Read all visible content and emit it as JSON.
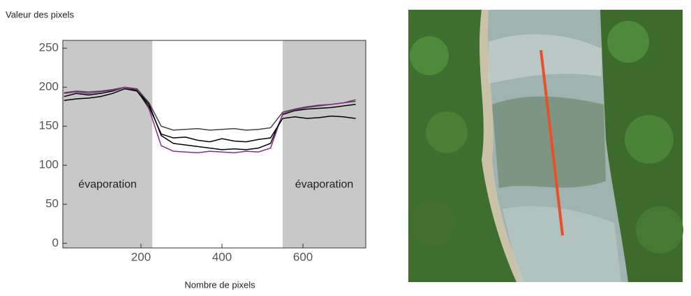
{
  "chart_data": {
    "type": "line",
    "ylabel": "Valeur des pixels",
    "xlabel": "Nombre de pixels",
    "x": [
      10,
      40,
      70,
      100,
      130,
      160,
      190,
      220,
      250,
      280,
      310,
      340,
      370,
      400,
      430,
      460,
      490,
      520,
      550,
      580,
      610,
      640,
      670,
      700,
      730
    ],
    "series": [
      {
        "color": "#000000",
        "values": [
          188,
          192,
          190,
          192,
          195,
          200,
          196,
          178,
          138,
          128,
          126,
          124,
          122,
          120,
          121,
          120,
          122,
          128,
          165,
          170,
          172,
          173,
          174,
          176,
          178
        ]
      },
      {
        "color": "#444444",
        "values": [
          193,
          195,
          194,
          195,
          197,
          200,
          198,
          180,
          150,
          145,
          146,
          147,
          145,
          146,
          147,
          145,
          146,
          148,
          168,
          172,
          175,
          177,
          178,
          180,
          182
        ]
      },
      {
        "color": "#8b2e8b",
        "values": [
          192,
          194,
          192,
          194,
          196,
          200,
          197,
          172,
          125,
          118,
          117,
          116,
          118,
          117,
          116,
          118,
          117,
          122,
          166,
          171,
          174,
          176,
          178,
          180,
          184
        ]
      },
      {
        "color": "#000000",
        "values": [
          183,
          185,
          186,
          188,
          192,
          198,
          195,
          175,
          140,
          135,
          136,
          132,
          130,
          134,
          131,
          130,
          133,
          135,
          160,
          162,
          160,
          161,
          163,
          162,
          160
        ]
      }
    ],
    "shaded_regions": [
      [
        7,
        228
      ],
      [
        550,
        755
      ]
    ],
    "shade_color": "#c8c8c8",
    "annotations": [
      "évaporation",
      "évaporation"
    ],
    "xlim": [
      7,
      755
    ],
    "ylim": [
      -6,
      260
    ],
    "xticks": [
      200,
      400,
      600
    ],
    "yticks": [
      0,
      50,
      100,
      150,
      200,
      250
    ]
  }
}
